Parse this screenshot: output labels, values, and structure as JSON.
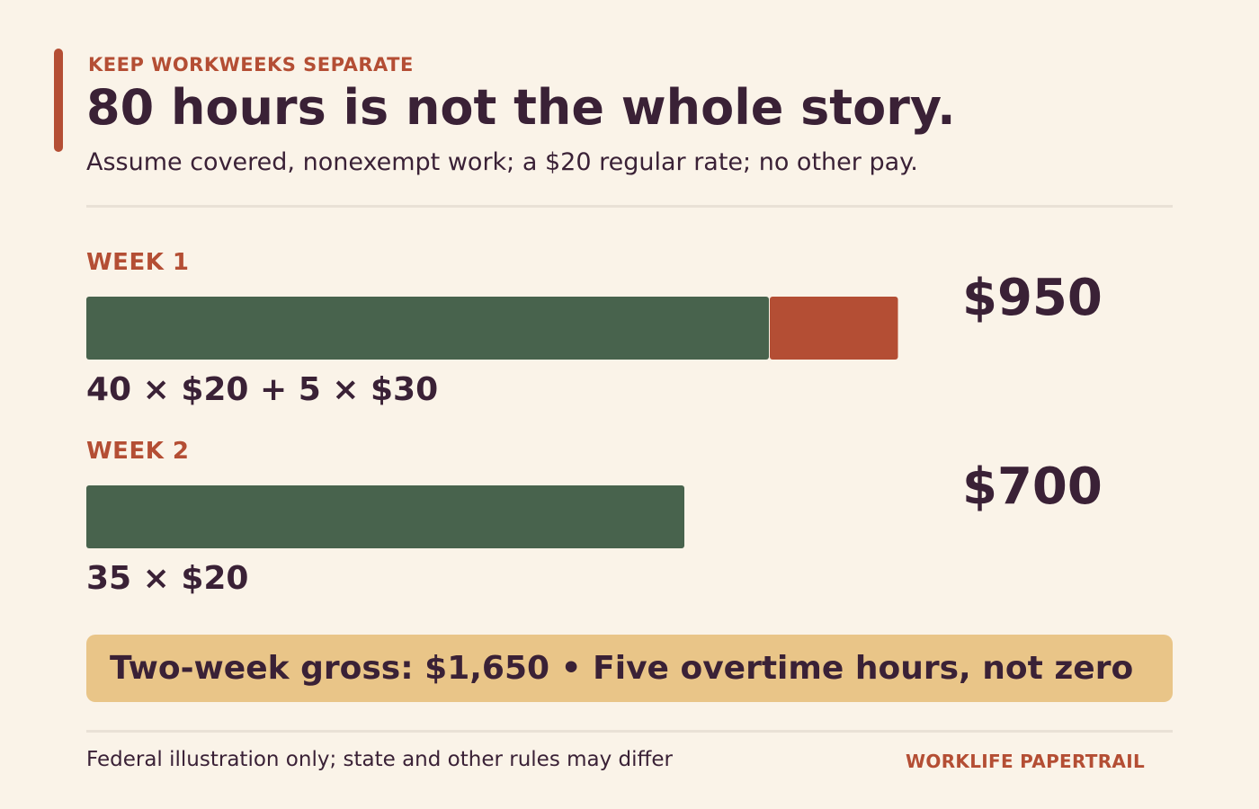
{
  "header": {
    "eyebrow": "KEEP WORKWEEKS SEPARATE",
    "title": "80 hours is not the whole story.",
    "subtitle": "Assume covered, nonexempt work; a $20 regular rate; no other pay."
  },
  "colors": {
    "regular": "#48634d",
    "overtime": "#b44e34",
    "accent": "#b44e34",
    "text": "#3a2136",
    "callout_bg": "#e9c588",
    "background": "#faf3e8"
  },
  "chart_data": {
    "type": "bar",
    "orientation": "horizontal",
    "stacked": true,
    "categories": [
      "WEEK 1",
      "WEEK 2"
    ],
    "series": [
      {
        "key": "regular",
        "values": [
          800,
          700
        ]
      },
      {
        "key": "overtime",
        "values": [
          150,
          0
        ]
      }
    ],
    "totals": [
      "$950",
      "$700"
    ],
    "formulas": [
      "40 × $20 + 5 × $30",
      "35 × $20"
    ],
    "xlim": [
      0,
      1100
    ],
    "grid": false
  },
  "callout": {
    "text": "Two-week gross: $1,650 • Five overtime hours, not zero"
  },
  "footer": {
    "note": "Federal illustration only; state and other rules may differ",
    "brand": "WORKLIFE PAPERTRAIL"
  }
}
